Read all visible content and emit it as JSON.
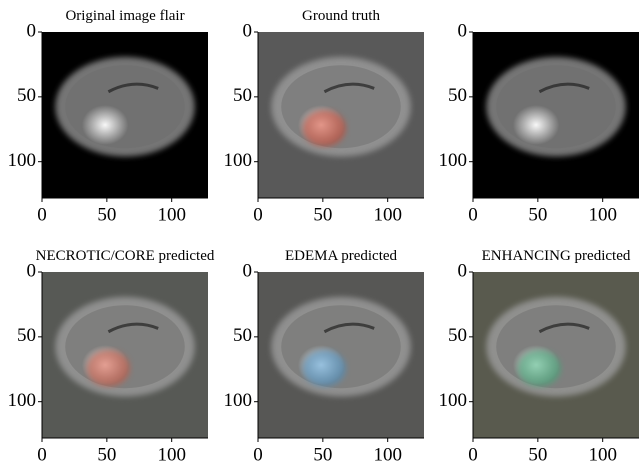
{
  "chart_data": [
    {
      "type": "image",
      "title": "Original image flair",
      "background": "#000000",
      "brain_color": "#8a8a8a",
      "xlim": [
        0,
        128
      ],
      "ylim": [
        0,
        128
      ],
      "invert_y": true,
      "xticks": [
        0,
        50,
        100
      ],
      "yticks": [
        0,
        50,
        100
      ]
    },
    {
      "type": "image",
      "title": "Ground truth",
      "background": "#595959",
      "brain_color": "#9a9a9a",
      "overlay_color": "#d0452e",
      "xlim": [
        0,
        128
      ],
      "ylim": [
        0,
        128
      ],
      "invert_y": true,
      "xticks": [
        0,
        50,
        100
      ],
      "yticks": [
        0,
        50,
        100
      ]
    },
    {
      "type": "image",
      "background": "#000000",
      "brain_color": "#8a8a8a",
      "xlim": [
        0,
        128
      ],
      "ylim": [
        0,
        128
      ],
      "invert_y": true,
      "xticks": [
        0,
        50,
        100
      ],
      "yticks": [
        0,
        50,
        100
      ]
    },
    {
      "type": "image",
      "title": "NECROTIC/CORE predicted",
      "background": "#575955",
      "brain_color": "#9a9a9a",
      "overlay_color": "#d2573f",
      "xlim": [
        0,
        128
      ],
      "ylim": [
        0,
        128
      ],
      "invert_y": true,
      "xticks": [
        0,
        50,
        100
      ],
      "yticks": [
        0,
        50,
        100
      ]
    },
    {
      "type": "image",
      "title": "EDEMA predicted",
      "background": "#575755",
      "brain_color": "#9a9a9a",
      "overlay_color": "#4a93c8",
      "xlim": [
        0,
        128
      ],
      "ylim": [
        0,
        128
      ],
      "invert_y": true,
      "xticks": [
        0,
        50,
        100
      ],
      "yticks": [
        0,
        50,
        100
      ]
    },
    {
      "type": "image",
      "title": "ENHANCING predicted",
      "background": "#595a4e",
      "brain_color": "#9a9a9a",
      "overlay_color": "#3fae7a",
      "xlim": [
        0,
        128
      ],
      "ylim": [
        0,
        128
      ],
      "invert_y": true,
      "xticks": [
        0,
        50,
        100
      ],
      "yticks": [
        0,
        50,
        100
      ]
    }
  ]
}
